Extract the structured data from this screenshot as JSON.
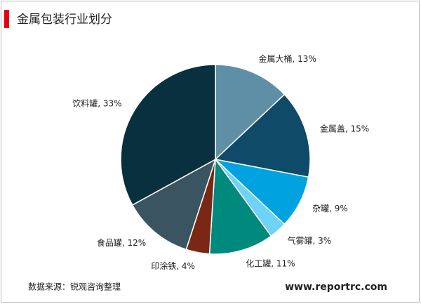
{
  "chart_data": {
    "type": "pie",
    "title": "金属包装行业划分",
    "values": [
      13,
      15,
      9,
      3,
      11,
      4,
      12,
      33
    ],
    "value_labels": [
      "金属大桶, 13%",
      "金属盖, 15%",
      "杂罐, 9%",
      "气雾罐, 3%",
      "化工罐, 11%",
      "印涂铁, 4%",
      "食品罐, 12%",
      "饮料罐, 33%"
    ],
    "colors": [
      "#5e8fa7",
      "#0f4a69",
      "#00a3e0",
      "#6fd2f7",
      "#00897d",
      "#7a2815",
      "#3a5462",
      "#08303e"
    ],
    "source": "数据来源：锐观咨询整理",
    "website": "www.reportrc.com"
  }
}
